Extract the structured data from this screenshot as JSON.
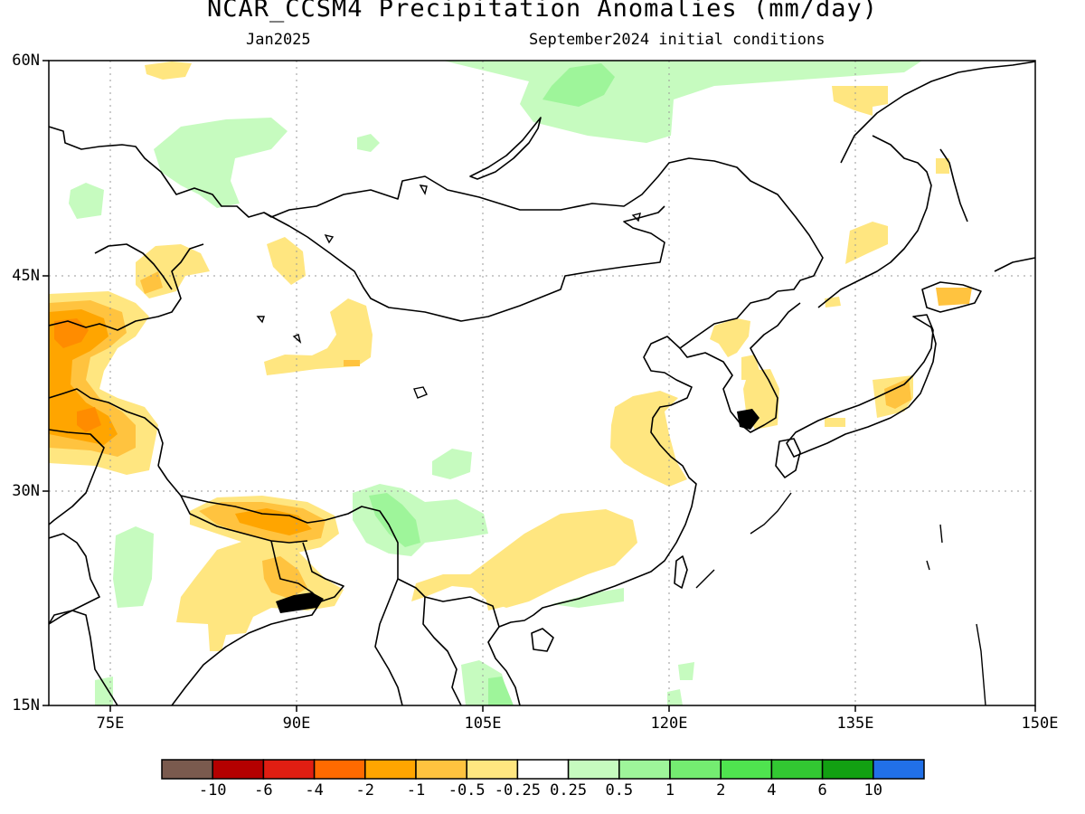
{
  "header": {
    "title": "NCAR_CCSM4 Precipitation Anomalies (mm/day)",
    "valid_month": "Jan2025",
    "init": "September2024 initial conditions"
  },
  "map": {
    "lat_labels": [
      "60N",
      "45N",
      "30N",
      "15N"
    ],
    "lon_labels": [
      "75E",
      "90E",
      "105E",
      "120E",
      "135E",
      "150E"
    ],
    "grid": "dotted"
  },
  "colorbar": {
    "colors": [
      "#7a5a4e",
      "#b40000",
      "#e01e12",
      "#ff6a00",
      "#ffa500",
      "#ffc33f",
      "#ffe680",
      "#ffffff",
      "#c6fbbf",
      "#9ef59a",
      "#74ec71",
      "#4fe44f",
      "#32c832",
      "#12a012",
      "#2170e8"
    ],
    "labels": [
      "-10",
      "-6",
      "-4",
      "-2",
      "-1",
      "-0.5",
      "-0.25",
      "0.25",
      "0.5",
      "1",
      "2",
      "4",
      "6",
      "10"
    ]
  }
}
